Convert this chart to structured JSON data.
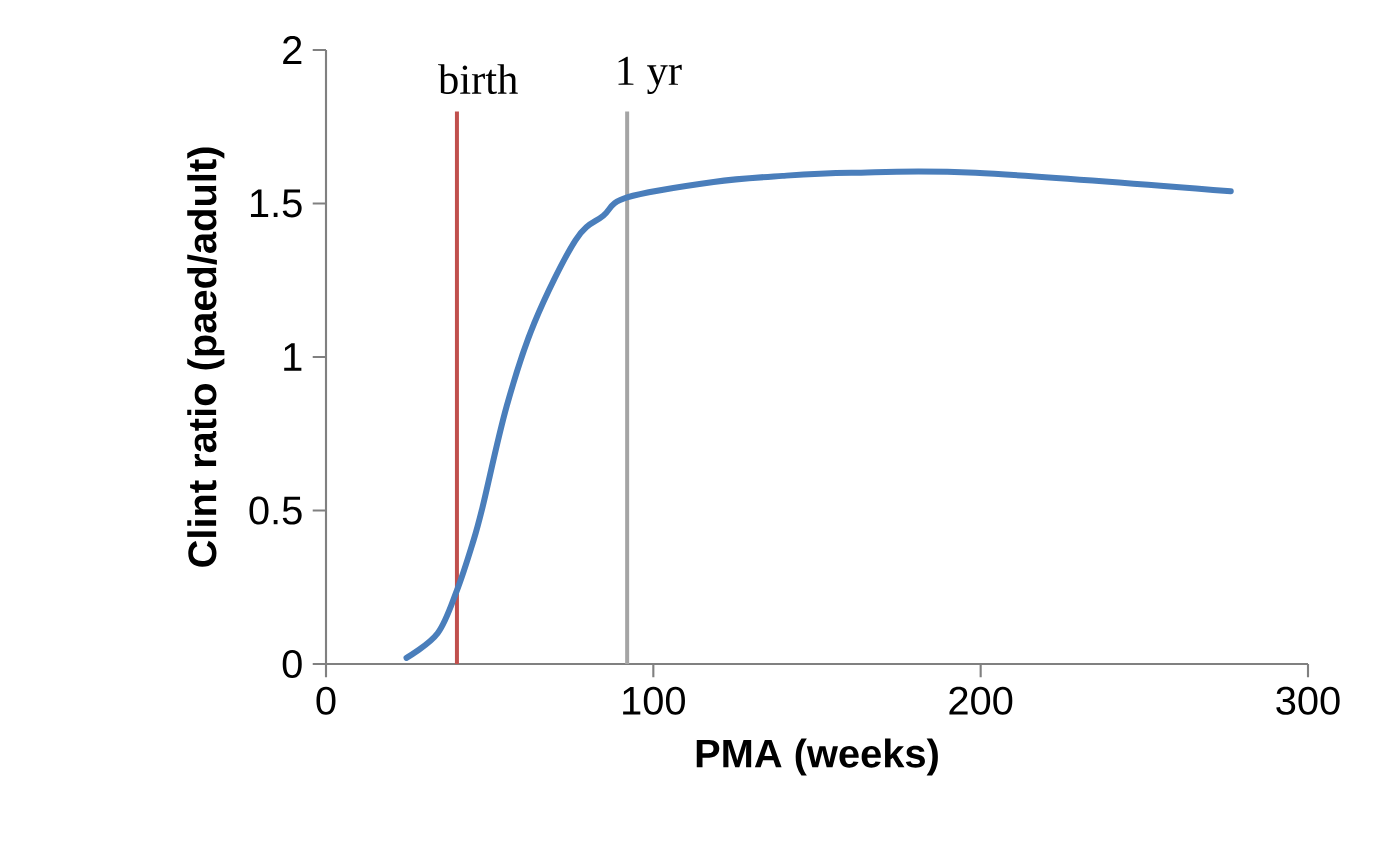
{
  "chart_data": {
    "type": "line",
    "xlabel": "PMA (weeks)",
    "ylabel": "Clint ratio (paed/adult)",
    "xlim": [
      0,
      300
    ],
    "xticks": [
      0,
      100,
      200,
      300
    ],
    "ylim": [
      0,
      2
    ],
    "yticks": [
      0,
      0.5,
      1,
      1.5,
      2
    ],
    "marker": "none",
    "line_style": "solid",
    "series": [
      {
        "color": "#4a7ebb",
        "x": [
          24.6,
          34.1,
          40,
          44.7,
          47.8,
          55.2,
          63.6,
          76.2,
          84.7,
          92,
          118.4,
          139.5,
          160.5,
          198.4,
          276.4
        ],
        "values": [
          0.02,
          0.1,
          0.24,
          0.39,
          0.51,
          0.84,
          1.11,
          1.38,
          1.46,
          1.52,
          1.57,
          1.59,
          1.6,
          1.6,
          1.54
        ]
      }
    ],
    "ref_lines": [
      {
        "axis": "x",
        "value": 40,
        "label": "birth",
        "color": "#c0504d"
      },
      {
        "axis": "x",
        "value": 92,
        "label": "1 yr",
        "color": "#a5a5a5"
      }
    ]
  }
}
